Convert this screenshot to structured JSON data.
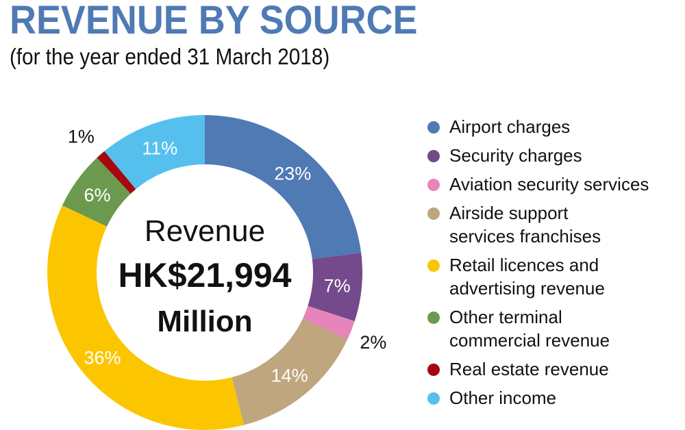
{
  "header": {
    "title": "REVENUE BY SOURCE",
    "subtitle": "(for the year ended 31 March 2018)"
  },
  "center": {
    "line1": "Revenue",
    "line2": "HK$21,994",
    "line3": "Million"
  },
  "chart_data": {
    "type": "pie",
    "variant": "donut",
    "title": "REVENUE BY SOURCE",
    "subtitle": "(for the year ended 31 March 2018)",
    "center_label": "Revenue HK$21,994 Million",
    "total": 21994,
    "unit": "HK$ Million",
    "legend_position": "right",
    "categories": [
      "Airport charges",
      "Security charges",
      "Aviation security services",
      "Airside support services franchises",
      "Retail licences and advertising revenue",
      "Other terminal commercial revenue",
      "Real estate revenue",
      "Other income"
    ],
    "values": [
      23,
      7,
      2,
      14,
      36,
      6,
      1,
      11
    ],
    "colors": [
      "#4f7ab4",
      "#744a8c",
      "#e784b9",
      "#bfa67f",
      "#fbc600",
      "#6b9a4f",
      "#a6070f",
      "#55c0ee"
    ],
    "labels": [
      "23%",
      "7%",
      "2%",
      "14%",
      "36%",
      "6%",
      "1%",
      "11%"
    ]
  },
  "legend": {
    "items": [
      {
        "lines": [
          "Airport charges"
        ],
        "color": "#4f7ab4"
      },
      {
        "lines": [
          "Security charges"
        ],
        "color": "#744a8c"
      },
      {
        "lines": [
          "Aviation security services"
        ],
        "color": "#e784b9"
      },
      {
        "lines": [
          "Airside support",
          "services franchises"
        ],
        "color": "#bfa67f"
      },
      {
        "lines": [
          "Retail licences and",
          "advertising revenue"
        ],
        "color": "#fbc600"
      },
      {
        "lines": [
          "Other terminal",
          "commercial revenue"
        ],
        "color": "#6b9a4f"
      },
      {
        "lines": [
          "Real estate revenue"
        ],
        "color": "#a6070f"
      },
      {
        "lines": [
          "Other income"
        ],
        "color": "#55c0ee"
      }
    ]
  }
}
